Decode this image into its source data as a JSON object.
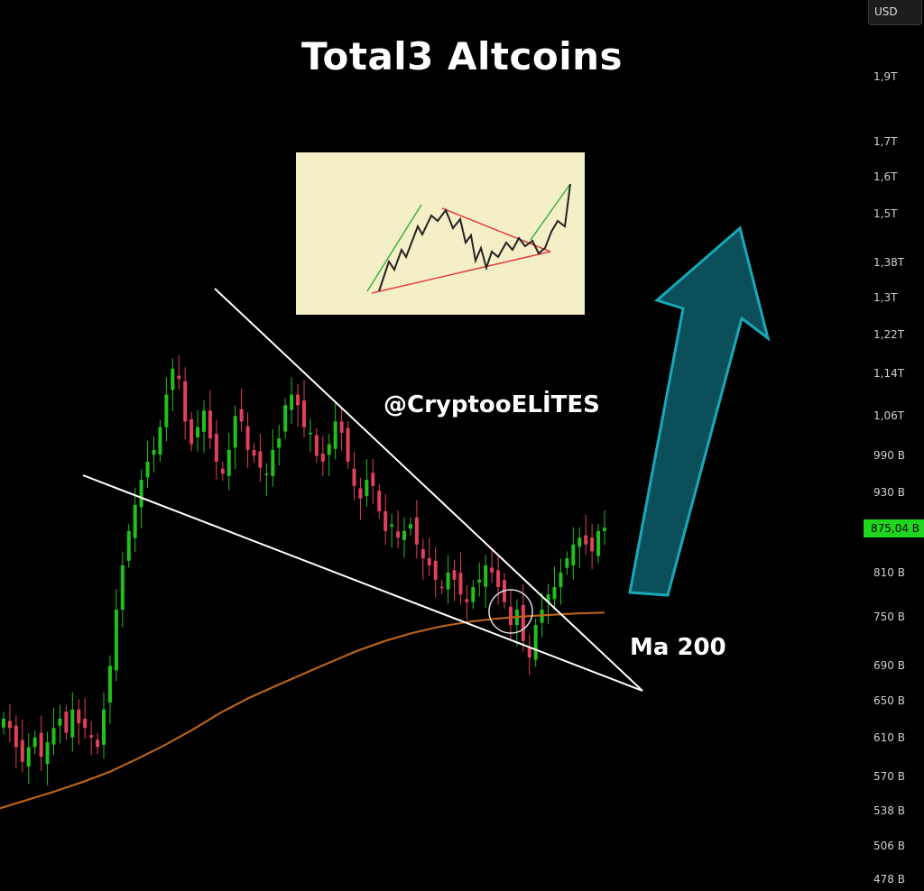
{
  "title": "Total3 Altcoins",
  "watermark": "@CryptooELİTES",
  "currency": "USD",
  "current_price": "875,04 B",
  "ma_label": "Ma 200",
  "colors": {
    "background": "#000000",
    "up_candle": "#22c01e",
    "down_candle": "#e0405a",
    "ma200": "#b8621c",
    "trendline": "#ffffff",
    "arrow_fill": "#0b4f5a",
    "arrow_stroke": "#19a8b8",
    "inset_bg": "#f5efc8",
    "price_badge": "#1ed61e"
  },
  "y_axis_ticks": [
    "1,9T",
    "1,7T",
    "1,6T",
    "1,5T",
    "1,38T",
    "1,3T",
    "1,22T",
    "1,14T",
    "1,06T",
    "990 B",
    "930 B",
    "810 B",
    "750 B",
    "690 B",
    "650 B",
    "610 B",
    "570 B",
    "538 B",
    "506 B",
    "478 B"
  ],
  "chart_data": {
    "type": "candlestick",
    "title": "Total3 Altcoins",
    "y_scale": "log",
    "y_ticks_B": [
      1900,
      1700,
      1600,
      1500,
      1380,
      1300,
      1220,
      1140,
      1060,
      990,
      930,
      810,
      750,
      690,
      650,
      610,
      570,
      538,
      506,
      478
    ],
    "last_price_B": 875.04,
    "closes_B": [
      630,
      620,
      600,
      585,
      600,
      610,
      590,
      605,
      620,
      630,
      615,
      640,
      625,
      620,
      610,
      600,
      640,
      690,
      760,
      820,
      870,
      910,
      950,
      980,
      1000,
      1040,
      1100,
      1150,
      1130,
      1050,
      1010,
      1040,
      1070,
      1020,
      980,
      960,
      1000,
      1060,
      1050,
      1000,
      990,
      970,
      960,
      1000,
      1020,
      1080,
      1100,
      1080,
      1040,
      1030,
      990,
      980,
      1010,
      1050,
      1030,
      980,
      940,
      920,
      950,
      940,
      900,
      870,
      880,
      860,
      870,
      880,
      850,
      830,
      820,
      800,
      790,
      810,
      800,
      780,
      770,
      790,
      800,
      820,
      810,
      790,
      770,
      740,
      760,
      720,
      700,
      740,
      760,
      780,
      790,
      810,
      830,
      850,
      860,
      850,
      840,
      870,
      875
    ],
    "ma200_B": [
      540,
      548,
      556,
      565,
      575,
      588,
      602,
      618,
      636,
      652,
      666,
      680,
      694,
      708,
      720,
      730,
      738,
      744,
      748,
      751,
      753,
      755,
      756
    ],
    "annotations": [
      "Ma 200"
    ],
    "legend": "none",
    "grid": false
  }
}
